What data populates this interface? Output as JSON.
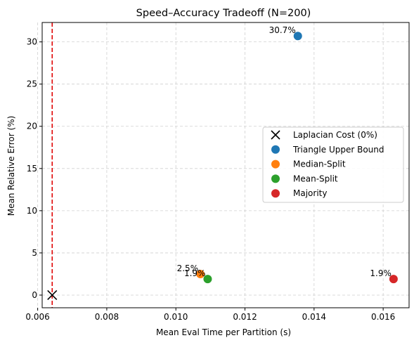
{
  "chart_data": {
    "type": "scatter",
    "title": "Speed–Accuracy Tradeoff (N=200)",
    "xlabel": "Mean Eval Time per Partition (s)",
    "ylabel": "Mean Relative Error (%)",
    "xlim": [
      0.00613,
      0.01675
    ],
    "ylim": [
      -1.5,
      32.3
    ],
    "xticks": [
      0.006,
      0.008,
      0.01,
      0.012,
      0.014,
      0.016
    ],
    "xtick_labels": [
      "0.006",
      "0.008",
      "0.010",
      "0.012",
      "0.014",
      "0.016"
    ],
    "yticks": [
      0,
      5,
      10,
      15,
      20,
      25,
      30
    ],
    "ytick_labels": [
      "0",
      "5",
      "10",
      "15",
      "20",
      "25",
      "30"
    ],
    "grid": true,
    "legend_position": "center-right",
    "reference_line": {
      "x": 0.00642,
      "color": "#e00000",
      "style": "dashed"
    },
    "series": [
      {
        "name": "Laplacian Cost (0%)",
        "marker": "x",
        "color": "#000000",
        "points": [
          {
            "x": 0.00642,
            "y": 0.0,
            "label": ""
          }
        ]
      },
      {
        "name": "Triangle Upper Bound",
        "marker": "o",
        "color": "#1f77b4",
        "points": [
          {
            "x": 0.01353,
            "y": 30.7,
            "label": "30.7%"
          }
        ]
      },
      {
        "name": "Median-Split",
        "marker": "o",
        "color": "#ff7f0e",
        "points": [
          {
            "x": 0.01071,
            "y": 2.5,
            "label": "2.5%"
          }
        ]
      },
      {
        "name": "Mean-Split",
        "marker": "o",
        "color": "#2ca02c",
        "points": [
          {
            "x": 0.01092,
            "y": 1.9,
            "label": "1.9%"
          }
        ]
      },
      {
        "name": "Majority",
        "marker": "o",
        "color": "#d62728",
        "points": [
          {
            "x": 0.0163,
            "y": 1.9,
            "label": "1.9%"
          }
        ]
      }
    ]
  }
}
